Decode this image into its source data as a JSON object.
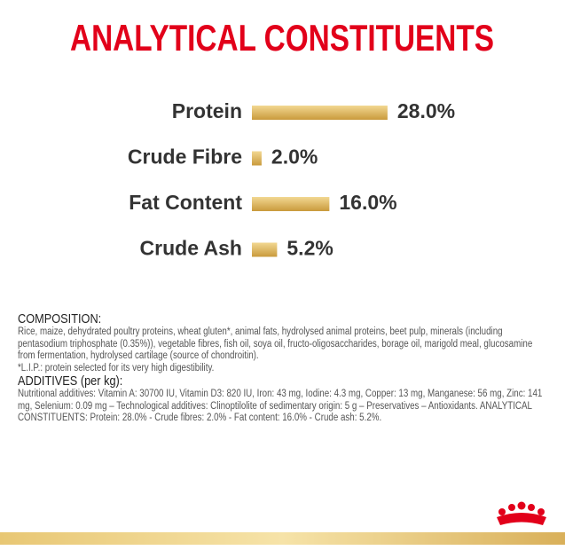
{
  "chart_data": {
    "type": "bar",
    "title": "ANALYTICAL CONSTITUENTS",
    "categories": [
      "Protein",
      "Crude Fibre",
      "Fat Content",
      "Crude Ash"
    ],
    "values": [
      28.0,
      2.0,
      16.0,
      5.2
    ],
    "value_labels": [
      "28.0%",
      "2.0%",
      "16.0%",
      "5.2%"
    ],
    "color": "#dcb45a"
  },
  "composition": {
    "heading": "COMPOSITION:",
    "text": "Rice, maize, dehydrated poultry proteins, wheat gluten*, animal fats, hydrolysed animal proteins, beet pulp, minerals (including pentasodium triphosphate (0.35%)), vegetable fibres, fish oil, soya oil, fructo-oligosaccharides, borage oil, marigold meal, glucosamine from fermentation, hydrolysed cartilage (source of chondroitin).",
    "note": "*L.I.P.: protein selected for its very high digestibility."
  },
  "additives": {
    "heading": "ADDITIVES (per kg):",
    "text": "Nutritional additives: Vitamin A: 30700 IU, Vitamin D3: 820 IU, Iron: 43 mg, Iodine: 4.3 mg, Copper: 13 mg, Manganese: 56 mg, Zinc: 141 mg, Selenium: 0.09 mg – Technological additives: Clinoptilolite of sedimentary origin: 5 g – Preservatives – Antioxidants. ANALYTICAL CONSTITUENTS: Protein: 28.0% - Crude fibres: 2.0% - Fat content: 16.0% - Crude ash: 5.2%."
  }
}
